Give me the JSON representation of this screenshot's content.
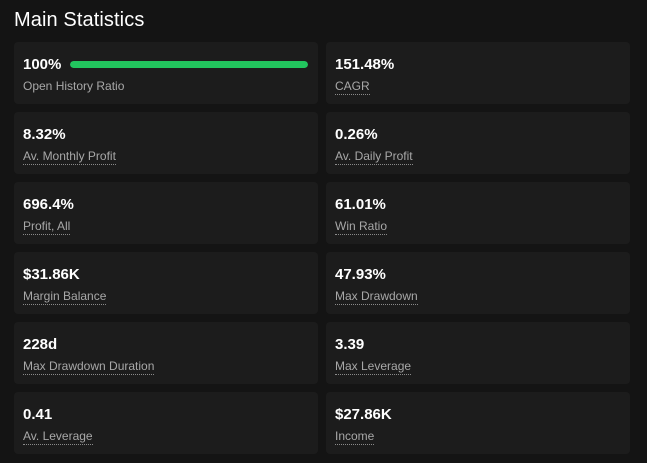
{
  "title": "Main Statistics",
  "accent_color": "#22c55e",
  "open_history": {
    "value": "100%",
    "label": "Open History Ratio",
    "progress": 1.0
  },
  "stats": [
    {
      "value": "151.48%",
      "label": "CAGR"
    },
    {
      "value": "8.32%",
      "label": "Av. Monthly Profit"
    },
    {
      "value": "0.26%",
      "label": "Av. Daily Profit"
    },
    {
      "value": "696.4%",
      "label": "Profit, All"
    },
    {
      "value": "61.01%",
      "label": "Win Ratio"
    },
    {
      "value": "$31.86K",
      "label": "Margin Balance"
    },
    {
      "value": "47.93%",
      "label": "Max Drawdown"
    },
    {
      "value": "228d",
      "label": "Max Drawdown Duration"
    },
    {
      "value": "3.39",
      "label": "Max Leverage"
    },
    {
      "value": "0.41",
      "label": "Av. Leverage"
    },
    {
      "value": "$27.86K",
      "label": "Income"
    }
  ]
}
